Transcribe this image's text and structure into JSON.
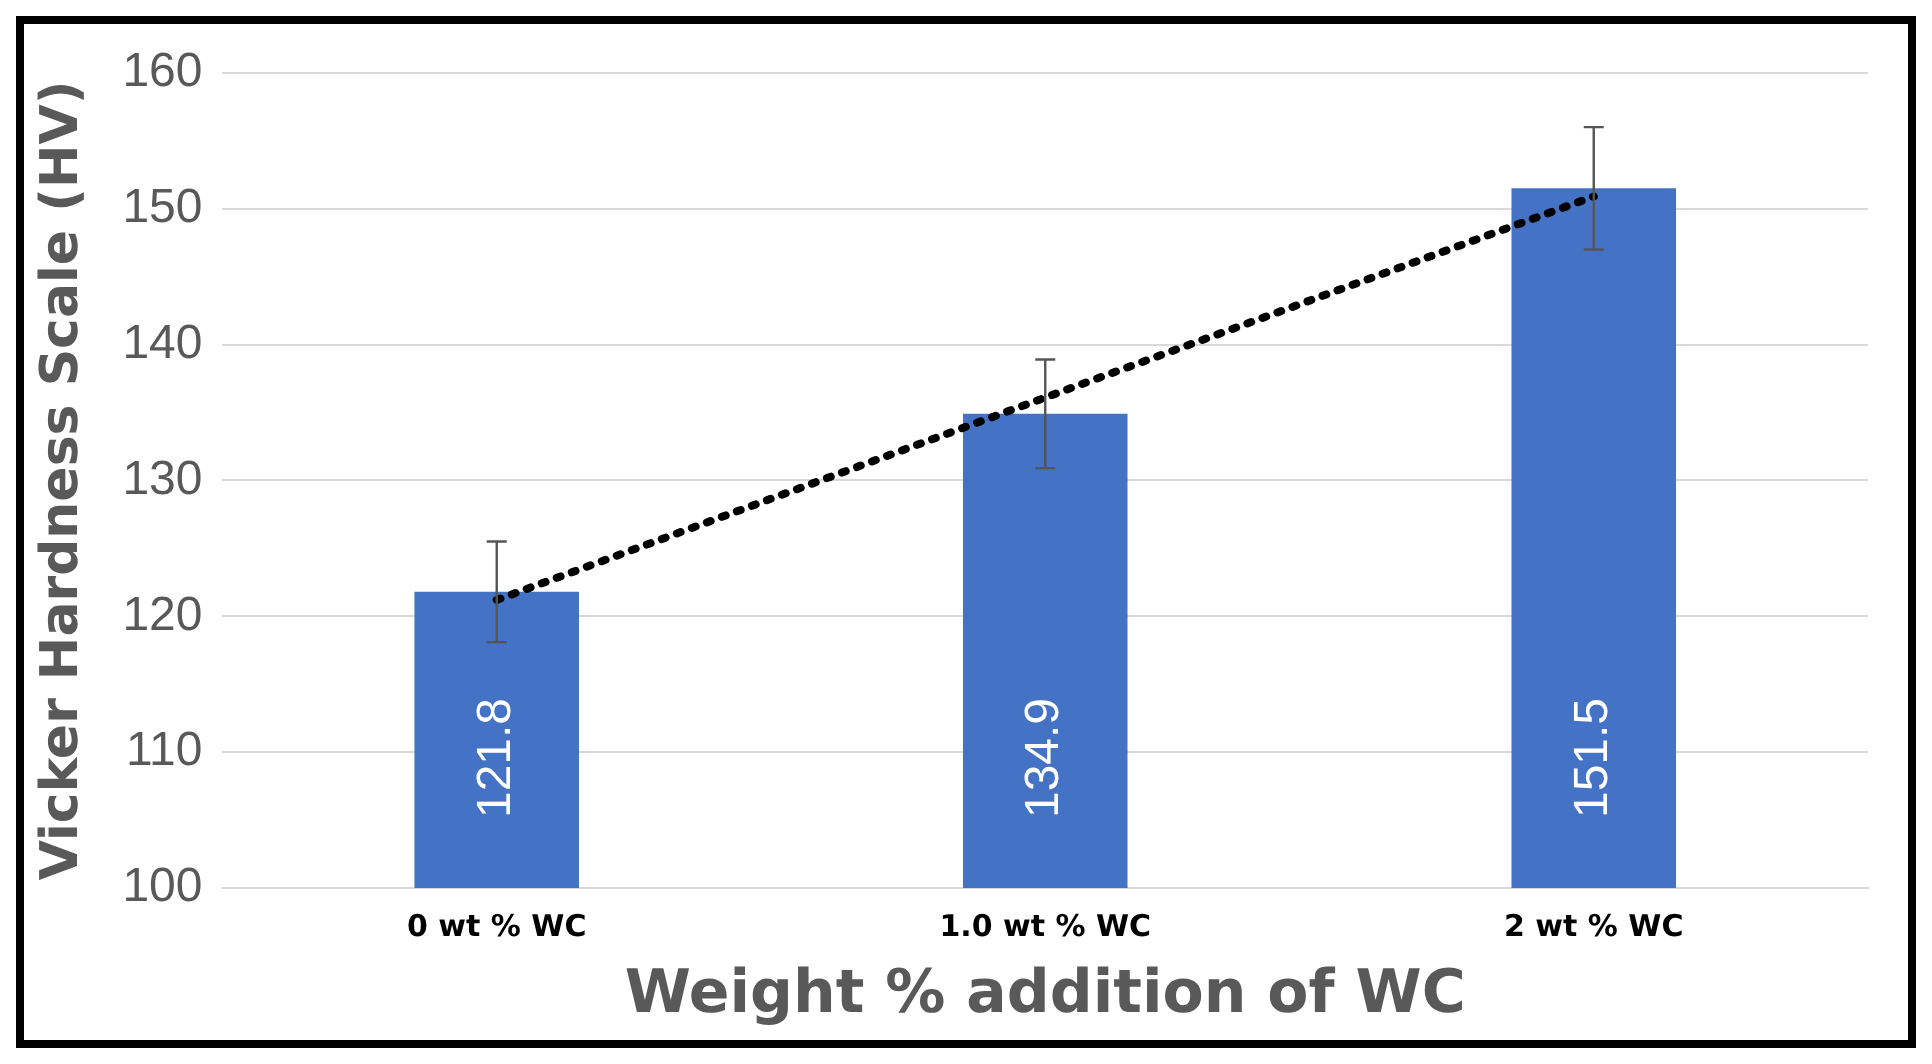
{
  "chart_data": {
    "type": "bar",
    "xlabel": "Weight % addition of WC",
    "ylabel": "Vicker Hardness Scale (HV)",
    "categories": [
      "0 wt % WC",
      "1.0 wt % WC",
      "2 wt % WC"
    ],
    "series": [
      {
        "color": "#4472c4",
        "values": [
          121.8,
          134.9,
          151.5
        ],
        "errors": [
          3.7,
          4,
          4.5
        ],
        "value_labels": [
          "121.8",
          "134.9",
          "151.5"
        ]
      },
      {
        "type": "line",
        "color": "#000000",
        "values": [
          121.2,
          136.1,
          150.9
        ],
        "line_style": "dotted",
        "marker": "none"
      }
    ],
    "ylim": [
      100,
      160
    ],
    "yticks": [
      100,
      110,
      120,
      130,
      140,
      150,
      160
    ],
    "grid": "y"
  }
}
